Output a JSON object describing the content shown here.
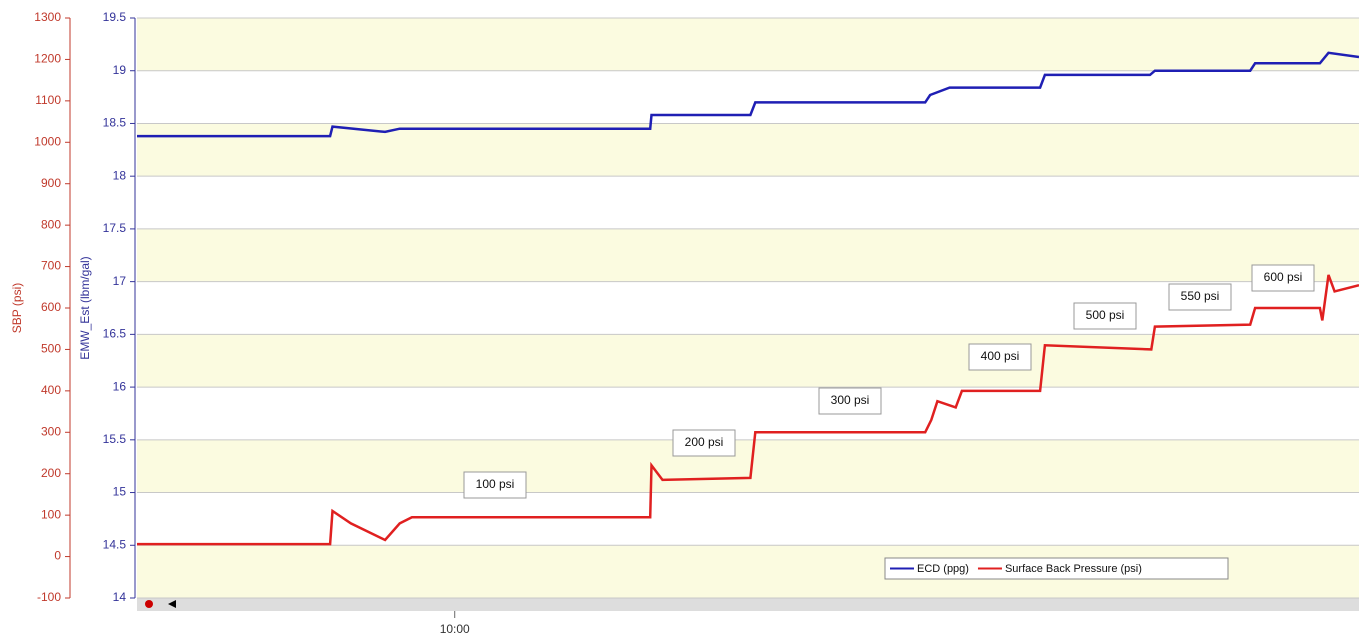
{
  "chart_data": {
    "type": "line",
    "y_axis_label": "SBP (psi)",
    "y2_axis_label": "EMW_Est (lbm/gal)",
    "xlim": [
      0,
      100
    ],
    "xticks": [
      {
        "value": 26,
        "label": "10:00"
      }
    ],
    "ylim": [
      -100,
      1300
    ],
    "yticks": [
      -100,
      0,
      100,
      200,
      300,
      400,
      500,
      600,
      700,
      800,
      900,
      1000,
      1100,
      1200,
      1300
    ],
    "y2lim": [
      14,
      19.5
    ],
    "y2ticks": [
      14,
      14.5,
      15,
      15.5,
      16,
      16.5,
      17,
      17.5,
      18,
      18.5,
      19,
      19.5
    ],
    "y_color": "#c0392b",
    "y2_color": "#333399",
    "grid": true,
    "legend": "lower right",
    "series": [
      {
        "name": "ECD (ppg)",
        "color": "#1f1fb4",
        "axis": "y2",
        "x": [
          0,
          15.8,
          16.0,
          20.3,
          21.5,
          42.0,
          42.1,
          50.2,
          50.6,
          64.5,
          64.9,
          66.5,
          73.9,
          74.3,
          82.9,
          83.3,
          91.1,
          91.5,
          96.8,
          97.5,
          100
        ],
        "values": [
          18.38,
          18.38,
          18.47,
          18.42,
          18.45,
          18.45,
          18.58,
          18.58,
          18.7,
          18.7,
          18.77,
          18.84,
          18.84,
          18.96,
          18.96,
          19.0,
          19.0,
          19.07,
          19.07,
          19.17,
          19.13
        ]
      },
      {
        "name": "Surface Back Pressure (psi)",
        "color": "#e02020",
        "x": [
          0,
          15.8,
          16.0,
          17.5,
          20.3,
          21.5,
          22.5,
          42.0,
          42.1,
          43.0,
          50.2,
          50.6,
          64.5,
          65.0,
          65.5,
          67.0,
          67.5,
          73.9,
          74.3,
          83.0,
          83.3,
          91.1,
          91.5,
          96.8,
          97.0,
          97.5,
          98.0,
          100
        ],
        "values": [
          30,
          30,
          110,
          80,
          40,
          80,
          95,
          95,
          220,
          185,
          190,
          300,
          300,
          330,
          375,
          360,
          400,
          400,
          510,
          500,
          555,
          560,
          600,
          600,
          570,
          680,
          640,
          655
        ]
      }
    ],
    "annotations": [
      "100 psi",
      "200 psi",
      "300 psi",
      "400 psi",
      "500 psi",
      "550 psi",
      "600 psi"
    ]
  }
}
